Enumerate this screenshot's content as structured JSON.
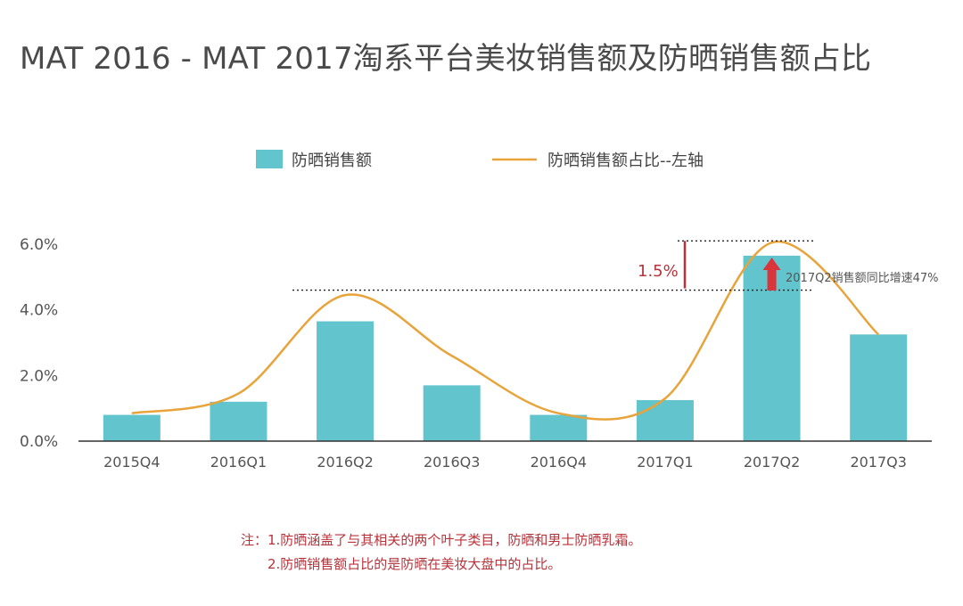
{
  "chart_data": {
    "type": "bar",
    "title": "MAT 2016 - MAT 2017淘系平台美妆销售额及防晒销售额占比",
    "categories": [
      "2015Q4",
      "2016Q1",
      "2016Q2",
      "2016Q3",
      "2016Q4",
      "2017Q1",
      "2017Q2",
      "2017Q3"
    ],
    "series": [
      {
        "name": "防晒销售额",
        "type": "bar",
        "values": [
          0.8,
          1.2,
          3.65,
          1.7,
          0.8,
          1.25,
          5.65,
          3.25
        ],
        "color": "#62c4cc"
      },
      {
        "name": "防晒销售额占比--左轴",
        "type": "line",
        "values": [
          0.85,
          1.45,
          4.45,
          2.6,
          0.85,
          1.3,
          6.05,
          3.25
        ],
        "color": "#e8a33a"
      }
    ],
    "y_ticks": [
      "0.0%",
      "2.0%",
      "4.0%",
      "6.0%"
    ],
    "ylim": [
      0,
      6.0
    ],
    "legend_position": "top-center",
    "annotations": {
      "gap_label": "1.5%",
      "growth_label": "2017Q2销售额同比增速47%",
      "ref_low": 4.6,
      "ref_high": 6.1
    },
    "accent_color": "#b8323a",
    "arrow_color": "#d9353b"
  },
  "notes": {
    "line1": "注：1.防晒涵盖了与其相关的两个叶子类目，防晒和男士防晒乳霜。",
    "line2": "2.防晒销售额占比的是防晒在美妆大盘中的占比。"
  }
}
